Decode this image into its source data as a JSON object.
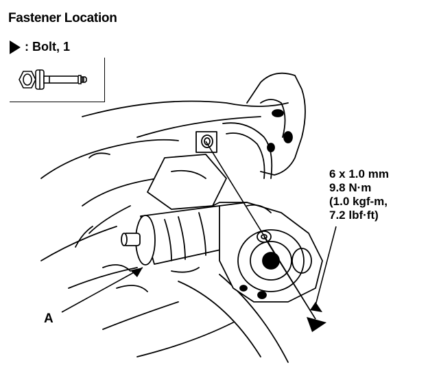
{
  "title": "Fastener Location",
  "legend": {
    "label": ": Bolt, 1",
    "icon": "bolt-icon"
  },
  "spec": {
    "lines": [
      "6 x 1.0 mm",
      "9.8 N·m",
      "(1.0 kgf-m,",
      "7.2 lbf·ft)"
    ]
  },
  "callout": {
    "label": "A"
  },
  "colors": {
    "ink": "#000000",
    "paper": "#ffffff"
  }
}
